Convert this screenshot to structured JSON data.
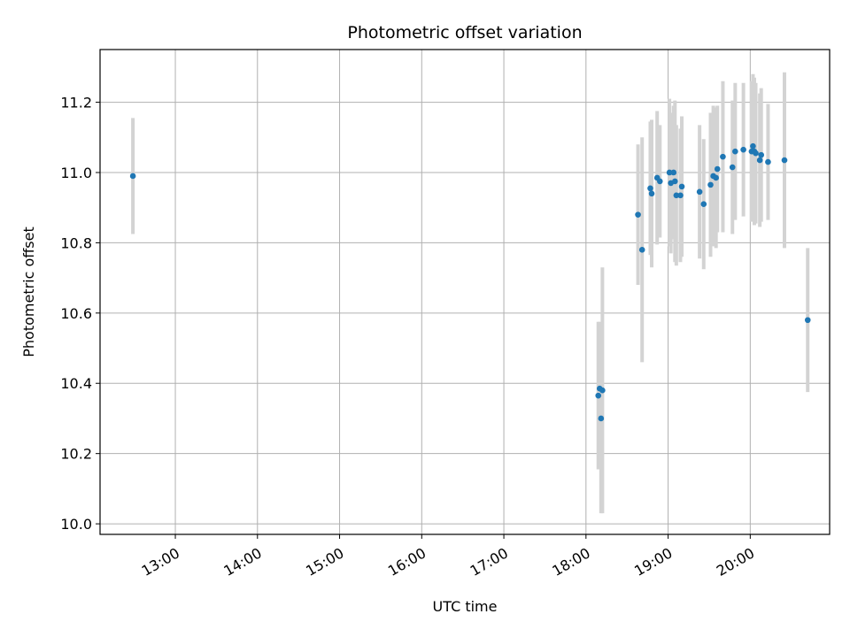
{
  "chart_data": {
    "type": "scatter",
    "title": "Photometric offset variation",
    "xlabel": "UTC time",
    "ylabel": "Photometric offset",
    "x_ticks": [
      "13:00",
      "14:00",
      "15:00",
      "16:00",
      "17:00",
      "18:00",
      "19:00",
      "20:00"
    ],
    "y_ticks": [
      "10.0",
      "10.2",
      "10.4",
      "10.6",
      "10.8",
      "11.0",
      "11.2"
    ],
    "xlim": [
      "12:05",
      "20:58"
    ],
    "ylim": [
      9.97,
      11.35
    ],
    "grid": true,
    "colors": {
      "marker": "#1f77b4",
      "errorbar": "#d3d3d3",
      "grid": "#b0b0b0"
    },
    "series": [
      {
        "points": [
          {
            "x": "12:29",
            "y": 10.99,
            "err": 0.165
          },
          {
            "x": "18:09",
            "y": 10.365,
            "err": 0.21
          },
          {
            "x": "18:10",
            "y": 10.385,
            "err": 0.19
          },
          {
            "x": "18:11",
            "y": 10.3,
            "err": 0.27
          },
          {
            "x": "18:12",
            "y": 10.38,
            "err": 0.35
          },
          {
            "x": "18:38",
            "y": 10.88,
            "err": 0.2
          },
          {
            "x": "18:41",
            "y": 10.78,
            "err": 0.32
          },
          {
            "x": "18:47",
            "y": 10.955,
            "err": 0.19
          },
          {
            "x": "18:48",
            "y": 10.94,
            "err": 0.21
          },
          {
            "x": "18:52",
            "y": 10.985,
            "err": 0.19
          },
          {
            "x": "18:54",
            "y": 10.975,
            "err": 0.16
          },
          {
            "x": "19:01",
            "y": 11.0,
            "err": 0.21
          },
          {
            "x": "19:02",
            "y": 10.97,
            "err": 0.2
          },
          {
            "x": "19:04",
            "y": 11.0,
            "err": 0.19
          },
          {
            "x": "19:05",
            "y": 10.975,
            "err": 0.23
          },
          {
            "x": "19:06",
            "y": 10.935,
            "err": 0.2
          },
          {
            "x": "19:09",
            "y": 10.935,
            "err": 0.19
          },
          {
            "x": "19:10",
            "y": 10.96,
            "err": 0.2
          },
          {
            "x": "19:23",
            "y": 10.945,
            "err": 0.19
          },
          {
            "x": "19:26",
            "y": 10.91,
            "err": 0.185
          },
          {
            "x": "19:31",
            "y": 10.965,
            "err": 0.205
          },
          {
            "x": "19:33",
            "y": 10.99,
            "err": 0.2
          },
          {
            "x": "19:35",
            "y": 10.985,
            "err": 0.2
          },
          {
            "x": "19:36",
            "y": 11.01,
            "err": 0.18
          },
          {
            "x": "19:40",
            "y": 11.045,
            "err": 0.215
          },
          {
            "x": "19:47",
            "y": 11.015,
            "err": 0.19
          },
          {
            "x": "19:49",
            "y": 11.06,
            "err": 0.195
          },
          {
            "x": "19:55",
            "y": 11.065,
            "err": 0.19
          },
          {
            "x": "20:01",
            "y": 11.06,
            "err": 0.2
          },
          {
            "x": "20:02",
            "y": 11.075,
            "err": 0.205
          },
          {
            "x": "20:03",
            "y": 11.06,
            "err": 0.21
          },
          {
            "x": "20:04",
            "y": 11.055,
            "err": 0.2
          },
          {
            "x": "20:07",
            "y": 11.035,
            "err": 0.19
          },
          {
            "x": "20:08",
            "y": 11.05,
            "err": 0.19
          },
          {
            "x": "20:13",
            "y": 11.03,
            "err": 0.165
          },
          {
            "x": "20:25",
            "y": 11.035,
            "err": 0.25
          },
          {
            "x": "20:42",
            "y": 10.58,
            "err": 0.205
          }
        ]
      }
    ]
  }
}
